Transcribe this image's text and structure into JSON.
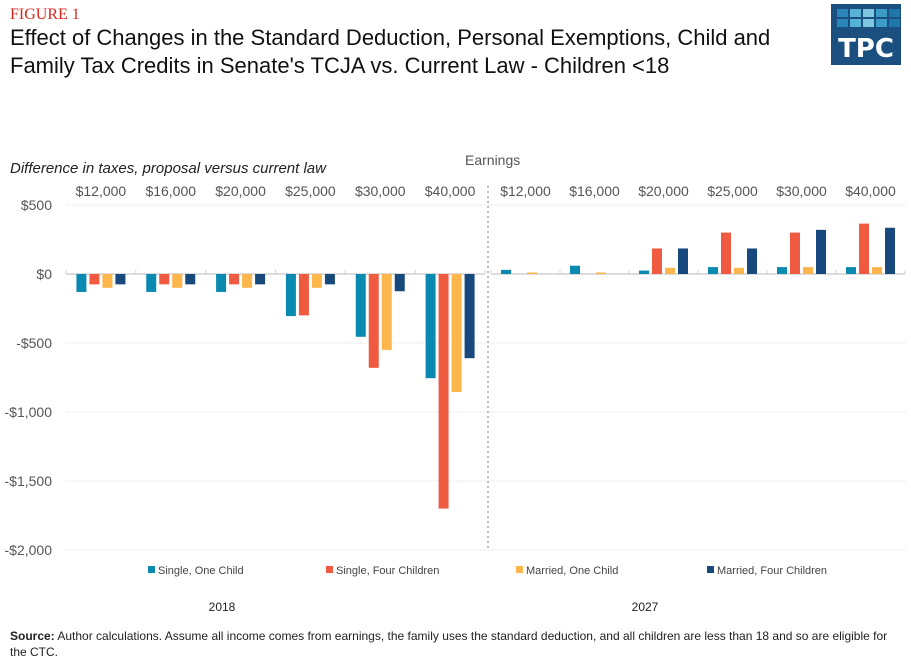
{
  "figure_label": "FIGURE 1",
  "title": "Effect of Changes in the Standard Deduction, Personal Exemptions, Child and Family Tax Credits in Senate's TCJA vs. Current Law - Children <18",
  "logo": {
    "text": "TPC",
    "colors": {
      "background": "#1b4f80",
      "tiles": [
        "#2a86b8",
        "#56b3d6",
        "#7fc6e0",
        "#3c9cc8",
        "#1f76a8"
      ]
    }
  },
  "source": {
    "label": "Source:",
    "text": " Author calculations. Assume all income comes from earnings, the family uses the standard deduction,  and all children  are less than 18 and so are eligible for the CTC."
  },
  "chart_data": {
    "type": "bar",
    "title": "Effect of Changes in the Standard Deduction, Personal Exemptions, Child and Family Tax Credits in Senate's TCJA vs. Current Law - Children <18",
    "ylabel": "Difference in taxes, proposal versus current law",
    "xlabel": "Earnings",
    "ylim": [
      -2000,
      500
    ],
    "yticks": [
      500,
      0,
      -500,
      -1000,
      -1500,
      -2000
    ],
    "ytick_labels": [
      "$500",
      "$0",
      "-$500",
      "-$1,000",
      "-$1,500",
      "-$2,000"
    ],
    "grid": true,
    "legend_position": "bottom",
    "panels": [
      {
        "name": "2018",
        "categories": [
          "$12,000",
          "$16,000",
          "$20,000",
          "$25,000",
          "$30,000",
          "$40,000"
        ],
        "series": [
          {
            "name": "Single, One Child",
            "color": "#0a8ab0",
            "values": [
              -130,
              -130,
              -130,
              -305,
              -455,
              -755
            ]
          },
          {
            "name": "Single, Four Children",
            "color": "#f05a41",
            "values": [
              -75,
              -75,
              -75,
              -300,
              -680,
              -1700
            ]
          },
          {
            "name": "Married, One Child",
            "color": "#fdb64b",
            "values": [
              -100,
              -100,
              -100,
              -100,
              -550,
              -855
            ]
          },
          {
            "name": "Married, Four Children",
            "color": "#17497c",
            "values": [
              -75,
              -75,
              -75,
              -75,
              -125,
              -610
            ]
          }
        ]
      },
      {
        "name": "2027",
        "categories": [
          "$12,000",
          "$16,000",
          "$20,000",
          "$25,000",
          "$30,000",
          "$40,000"
        ],
        "series": [
          {
            "name": "Single, One Child",
            "color": "#0a8ab0",
            "values": [
              30,
              60,
              25,
              50,
              50,
              50
            ]
          },
          {
            "name": "Single, Four Children",
            "color": "#f05a41",
            "values": [
              0,
              0,
              185,
              300,
              300,
              365
            ]
          },
          {
            "name": "Married, One Child",
            "color": "#fdb64b",
            "values": [
              10,
              10,
              45,
              45,
              50,
              50
            ]
          },
          {
            "name": "Married, Four Children",
            "color": "#17497c",
            "values": [
              0,
              0,
              185,
              185,
              320,
              335
            ]
          }
        ]
      }
    ]
  }
}
